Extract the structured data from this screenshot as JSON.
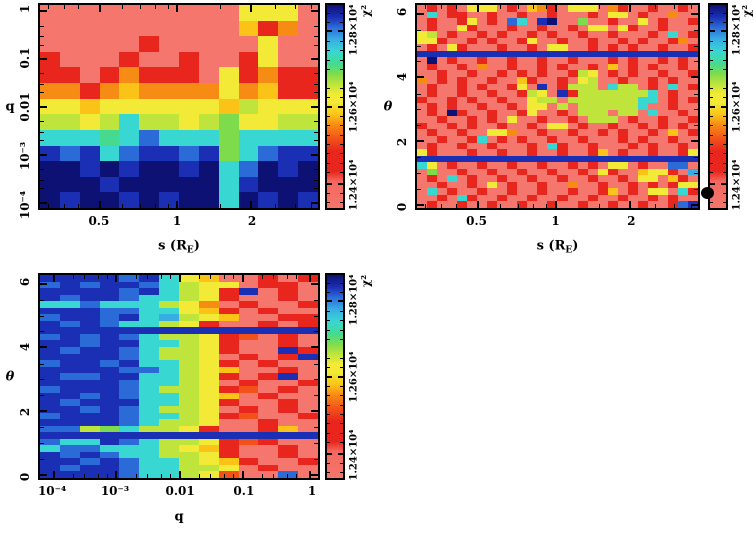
{
  "palette": {
    "0": "#f5766c",
    "1": "#e9261d",
    "2": "#f2511a",
    "3": "#f78c15",
    "4": "#fbc318",
    "5": "#f2ea36",
    "6": "#bfe43c",
    "7": "#7edc4c",
    "8": "#45da90",
    "9": "#38d7d2",
    "a": "#38ade4",
    "b": "#2b6bd8",
    "c": "#1b2fb4",
    "d": "#0d1173"
  },
  "colorbar_gradient": [
    {
      "c": "#f5766c",
      "f": 0
    },
    {
      "c": "#f4685e",
      "f": 13
    },
    {
      "c": "#e9261d",
      "f": 18
    },
    {
      "c": "#e9261d",
      "f": 28
    },
    {
      "c": "#f2511a",
      "f": 34
    },
    {
      "c": "#f78c15",
      "f": 41
    },
    {
      "c": "#fbc318",
      "f": 46
    },
    {
      "c": "#f2ea36",
      "f": 52
    },
    {
      "c": "#f2ea36",
      "f": 56
    },
    {
      "c": "#bfe43c",
      "f": 61
    },
    {
      "c": "#7edc4c",
      "f": 66
    },
    {
      "c": "#45da90",
      "f": 71
    },
    {
      "c": "#38d7d2",
      "f": 77
    },
    {
      "c": "#38ade4",
      "f": 83
    },
    {
      "c": "#2b6bd8",
      "f": 89
    },
    {
      "c": "#1b2fb4",
      "f": 94
    },
    {
      "c": "#0d1173",
      "f": 100
    }
  ],
  "chart_data": [
    {
      "name": "chi2-map-q-vs-s",
      "type": "heatmap",
      "x_axis": {
        "scale": "log",
        "title_parts": [
          {
            "t": "s (R"
          },
          {
            "t": "E",
            "sub": true
          },
          {
            "t": ")"
          }
        ],
        "ticks": [
          {
            "label": "0.5",
            "f": 0.216
          },
          {
            "label": "1",
            "f": 0.493
          },
          {
            "label": "2",
            "f": 0.759
          }
        ],
        "minor": [
          0.027,
          0.086,
          0.138,
          0.294,
          0.361,
          0.413,
          0.459,
          0.649,
          0.846,
          0.916,
          0.976
        ]
      },
      "y_axis": {
        "scale": "log",
        "title_parts": [
          {
            "t": "q"
          }
        ],
        "ticks": [
          {
            "label": "1",
            "f": 0.03
          },
          {
            "label": "0.1",
            "f": 0.266
          },
          {
            "label": "0.01",
            "f": 0.503
          },
          {
            "label": "10⁻³",
            "f": 0.739
          },
          {
            "label": "10⁻⁴",
            "f": 0.975
          }
        ],
        "minor": [
          0.101,
          0.153,
          0.195,
          0.337,
          0.389,
          0.431,
          0.573,
          0.625,
          0.667,
          0.809,
          0.861,
          0.903
        ]
      },
      "colorbar": {
        "title": "χ²",
        "ticks": [
          {
            "label": "1.24×10⁴",
            "f": 0.88
          },
          {
            "label": "1.26×10⁴",
            "f": 0.5
          },
          {
            "label": "1.28×10⁴",
            "f": 0.13
          }
        ],
        "minor": [
          0.04,
          0.085,
          0.176,
          0.222,
          0.269,
          0.315,
          0.407,
          0.454,
          0.546,
          0.593,
          0.639,
          0.685,
          0.731,
          0.777,
          0.824,
          0.926,
          0.972
        ]
      },
      "grid": {
        "ncols": 14,
        "nrows": 13,
        "rows": [
          "00000000005550",
          "00000000004130",
          "00000100000500",
          "10001001001500",
          "11013111051311",
          "33134333353411",
          "55455555546555",
          "66569665675566",
          "99989b99979999",
          "cbc9bccbc79bcc",
          "ddcdcddcd9bdcd",
          "dddcddddd9cddd",
          "dcddcdcdd9dcdc"
        ]
      }
    },
    {
      "name": "chi2-map-theta-vs-s",
      "type": "heatmap",
      "x_axis": {
        "scale": "log",
        "title_parts": [
          {
            "t": "s (R"
          },
          {
            "t": "E",
            "sub": true
          },
          {
            "t": ")"
          }
        ],
        "ticks": [
          {
            "label": "0.5",
            "f": 0.216
          },
          {
            "label": "1",
            "f": 0.493
          },
          {
            "label": "2",
            "f": 0.759
          }
        ],
        "minor": [
          0.027,
          0.086,
          0.138,
          0.294,
          0.361,
          0.413,
          0.459,
          0.649,
          0.846,
          0.916,
          0.976
        ]
      },
      "y_axis": {
        "scale": "linear",
        "title_parts": [
          {
            "t": "θ",
            "italic": true
          }
        ],
        "ticks": [
          {
            "label": "0",
            "f": 0.985
          },
          {
            "label": "2",
            "f": 0.671
          },
          {
            "label": "4",
            "f": 0.357
          },
          {
            "label": "6",
            "f": 0.043
          }
        ],
        "minor": [
          0.907,
          0.828,
          0.75,
          0.593,
          0.514,
          0.436,
          0.278,
          0.2,
          0.121
        ]
      },
      "colorbar": {
        "title": "χ²",
        "ticks": [
          {
            "label": "1.24×10⁴",
            "f": 0.88
          },
          {
            "label": "1.26×10⁴",
            "f": 0.5
          },
          {
            "label": "1.28×10⁴",
            "f": 0.13
          }
        ],
        "minor": [
          0.04,
          0.085,
          0.176,
          0.222,
          0.269,
          0.315,
          0.407,
          0.454,
          0.546,
          0.593,
          0.639,
          0.685,
          0.731,
          0.777,
          0.824,
          0.926,
          0.972
        ]
      },
      "marker": {
        "shape": "ellipse",
        "color": "#000000",
        "x_f": 1.026,
        "y_f": 0.918
      },
      "grid": {
        "ncols": 28,
        "nrows": 31,
        "rows": [
          "0101055501043105550310010010",
          "0901100100100100010550100300",
          "010015010b90cd00700100501001",
          "0100510001001001055051001000",
          "5601001010010100100100010901",
          "5510010100150010010010100130",
          "0105100010010550010101001001",
          "cccccccccccccccccccccccccccc",
          "0d01001001001001000101001010",
          "0100103001001010010401010010",
          "0010010010101001650101001001",
          "3010100100410010560010010100",
          "010010100150c016660966010901",
          "01001001001650c1666666690100",
          "1001010010056606666666990101",
          "0101001001055060666666900100",
          "010d100100150010666066090010",
          "0010010105001001066601001001",
          "1001010010010550100100101010",
          "0100100553001001001010010401",
          "0010019010100100100010100100",
          "0100100100010910010001010010",
          "5100010010010010014010010015",
          "cccccccccccccccccccccccccccc",
          "9501001001001001010550100bb0",
          "070010010010010010510045510a",
          "0109010010010010010010550410",
          "0010010501001003001001010155",
          "0901001001001001001401055091",
          "0010910010010010010010010100",
          "01001001001001001001001001bc"
        ]
      }
    },
    {
      "name": "chi2-map-theta-vs-q",
      "type": "heatmap",
      "x_axis": {
        "scale": "log",
        "title_parts": [
          {
            "t": "q"
          }
        ],
        "ticks": [
          {
            "label": "10⁻⁴",
            "f": 0.05
          },
          {
            "label": "10⁻³",
            "f": 0.273
          },
          {
            "label": "0.01",
            "f": 0.504
          },
          {
            "label": "0.1",
            "f": 0.73
          },
          {
            "label": "1",
            "f": 0.972
          }
        ],
        "minor": [
          0.118,
          0.158,
          0.208,
          0.241,
          0.344,
          0.384,
          0.434,
          0.467,
          0.572,
          0.611,
          0.662,
          0.694,
          0.798,
          0.837,
          0.888,
          0.92
        ]
      },
      "y_axis": {
        "scale": "linear",
        "title_parts": [
          {
            "t": "θ",
            "italic": true
          }
        ],
        "ticks": [
          {
            "label": "0",
            "f": 0.985
          },
          {
            "label": "2",
            "f": 0.671
          },
          {
            "label": "4",
            "f": 0.357
          },
          {
            "label": "6",
            "f": 0.043
          }
        ],
        "minor": [
          0.907,
          0.828,
          0.75,
          0.593,
          0.514,
          0.436,
          0.278,
          0.2,
          0.121
        ]
      },
      "colorbar": {
        "title": "χ²",
        "ticks": [
          {
            "label": "1.24×10⁴",
            "f": 0.88
          },
          {
            "label": "1.26×10⁴",
            "f": 0.5
          },
          {
            "label": "1.28×10⁴",
            "f": 0.13
          }
        ],
        "minor": [
          0.04,
          0.085,
          0.176,
          0.222,
          0.269,
          0.315,
          0.407,
          0.454,
          0.546,
          0.593,
          0.639,
          0.685,
          0.731,
          0.777,
          0.824,
          0.926,
          0.972
        ]
      },
      "grid": {
        "ncols": 14,
        "nrows": 31,
        "rows": [
          "ccccbc95400101",
          "bcbccb96550110",
          "ccccbc9651c010",
          "cbccb996510010",
          "99b99965301001",
          "cccbb995410100",
          "bccbc9a6540011",
          "cbcb9965100101",
          "cccccccccccccc",
          "bcbcb966512010",
          "ccbcc996510010",
          "cbccb9665100c1",
          "ccccb96650101c",
          "bccbc996510100",
          "ccccbb96540010",
          "cbbcc9965101c0",
          "ccccb996501001",
          "bcccb966512010",
          "ccbcb996540100",
          "cbccc996510010",
          "ccbcb966501010",
          "bcccb996512001",
          "ccccb966500100",
          "bb679665100140",
          "cccccccccccccc",
          "b99cb966512100",
          "9bb99965410010",
          "cbcb9966510010",
          "ccbcb996541001",
          "cbccb996650100",
          "ccccb9965200b0"
        ]
      }
    }
  ]
}
